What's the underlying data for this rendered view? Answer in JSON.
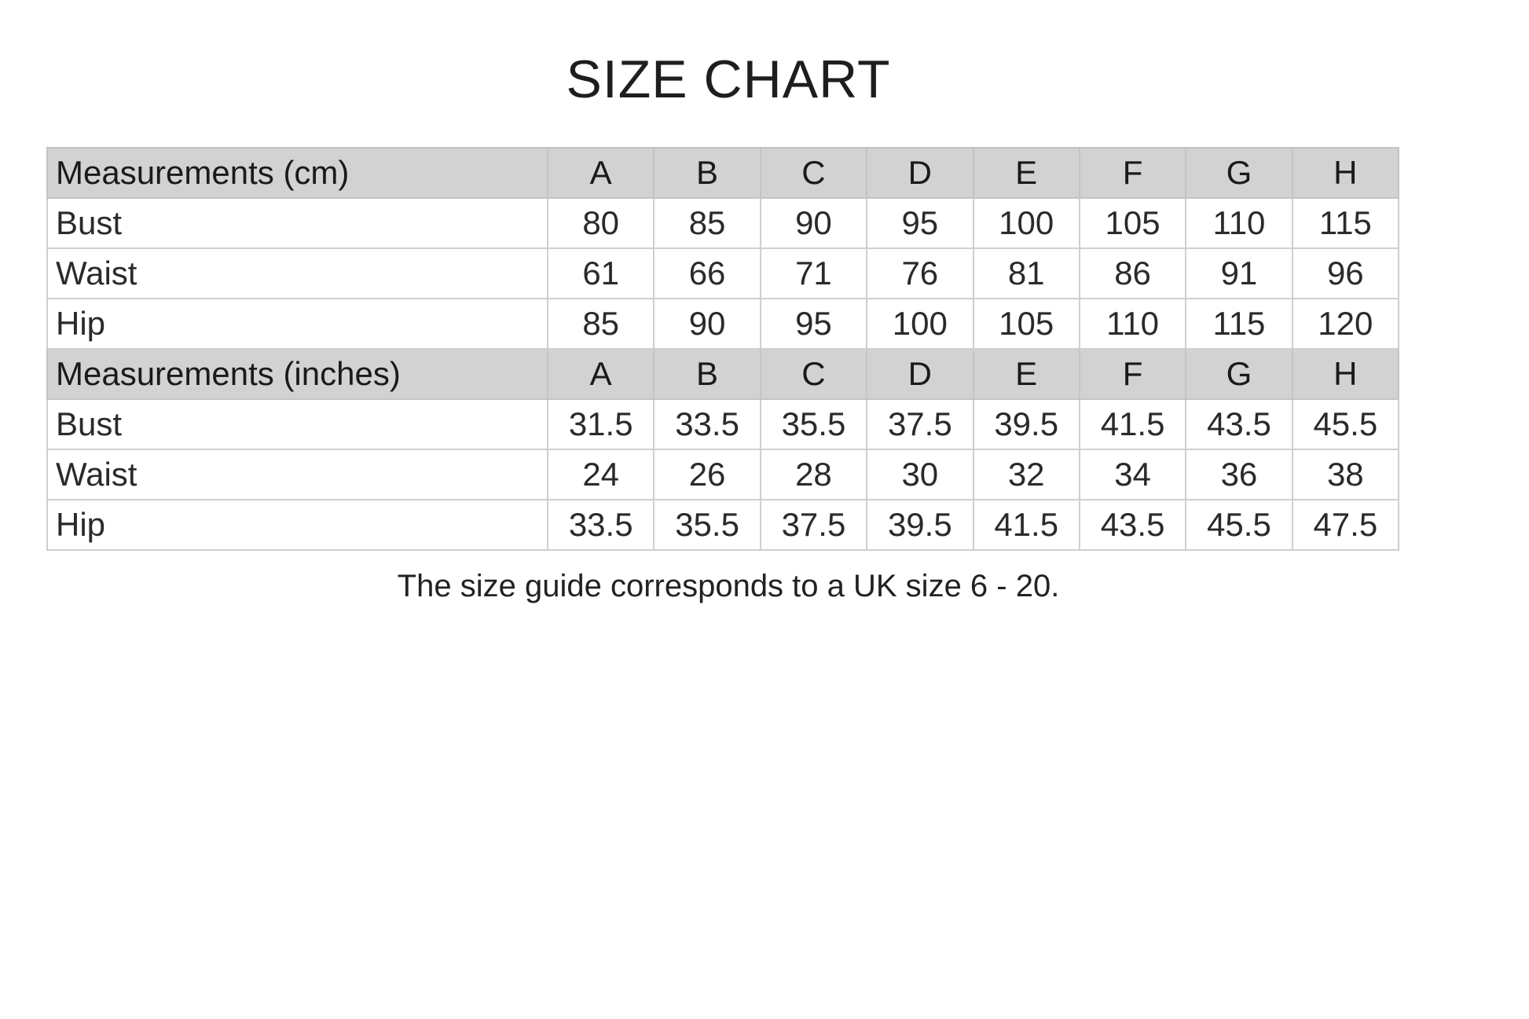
{
  "title": "SIZE CHART",
  "sizes": [
    "A",
    "B",
    "C",
    "D",
    "E",
    "F",
    "G",
    "H"
  ],
  "sections": [
    {
      "header": "Measurements (cm)",
      "rows": [
        {
          "label": "Bust",
          "values": [
            "80",
            "85",
            "90",
            "95",
            "100",
            "105",
            "110",
            "115"
          ]
        },
        {
          "label": "Waist",
          "values": [
            "61",
            "66",
            "71",
            "76",
            "81",
            "86",
            "91",
            "96"
          ]
        },
        {
          "label": "Hip",
          "values": [
            "85",
            "90",
            "95",
            "100",
            "105",
            "110",
            "115",
            "120"
          ]
        }
      ]
    },
    {
      "header": "Measurements (inches)",
      "rows": [
        {
          "label": "Bust",
          "values": [
            "31.5",
            "33.5",
            "35.5",
            "37.5",
            "39.5",
            "41.5",
            "43.5",
            "45.5"
          ]
        },
        {
          "label": "Waist",
          "values": [
            "24",
            "26",
            "28",
            "30",
            "32",
            "34",
            "36",
            "38"
          ]
        },
        {
          "label": "Hip",
          "values": [
            "33.5",
            "35.5",
            "37.5",
            "39.5",
            "41.5",
            "43.5",
            "45.5",
            "47.5"
          ]
        }
      ]
    }
  ],
  "footer": "The size guide corresponds to a UK size 6 - 20."
}
